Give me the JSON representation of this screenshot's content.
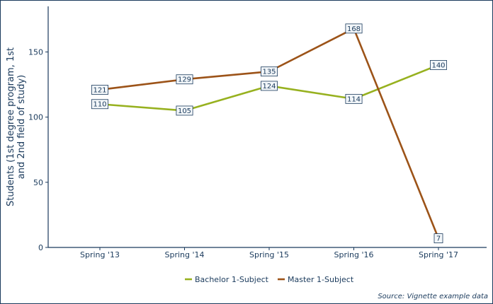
{
  "chart_data": {
    "type": "line",
    "categories": [
      "Spring '13",
      "Spring '14",
      "Spring '15",
      "Spring '16",
      "Spring '17"
    ],
    "series": [
      {
        "name": "Bachelor 1-Subject",
        "values": [
          110,
          105,
          124,
          114,
          140
        ],
        "color": "#97b11f"
      },
      {
        "name": "Master 1-Subject",
        "values": [
          121,
          129,
          135,
          168,
          7
        ],
        "color": "#9c5318"
      }
    ],
    "ylabel": "Students (1st degree program, 1st and 2nd field of study)",
    "ylabel_lines": [
      "Students (1st degree program, 1st",
      "and 2nd field of study)"
    ],
    "ylim": [
      0,
      185
    ],
    "yticks": [
      0,
      50,
      100,
      150
    ],
    "grid": false,
    "legend_position": "bottom",
    "data_labels": true,
    "caption": "Source: Vignette example data",
    "colors": {
      "axis": "#1a3a5c",
      "label_box_fill": "#f2f6f9"
    }
  }
}
